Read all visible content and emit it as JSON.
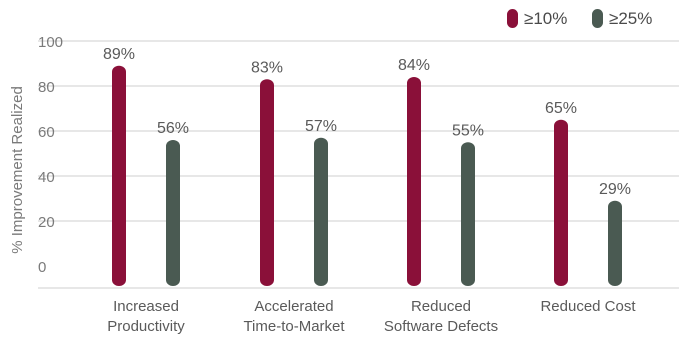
{
  "chart_data": {
    "type": "bar",
    "categories": [
      "Increased\nProductivity",
      "Accelerated\nTime-to-Market",
      "Reduced\nSoftware Defects",
      "Reduced Cost"
    ],
    "series": [
      {
        "name": "≥10%",
        "values": [
          89,
          83,
          84,
          65
        ],
        "labels": [
          "89%",
          "83%",
          "84%",
          "65%"
        ],
        "color": "#8a1039"
      },
      {
        "name": "≥25%",
        "values": [
          56,
          57,
          55,
          29
        ],
        "labels": [
          "56%",
          "57%",
          "55%",
          "29%"
        ],
        "color": "#4a5a52"
      }
    ],
    "ylabel": "% Improvement Realized",
    "xlabel": "",
    "ylim": [
      0,
      100
    ],
    "yticks": [
      0,
      20,
      40,
      60,
      80,
      100
    ],
    "grid": true,
    "legend": "top-right",
    "colors": {
      "grid": "#cfcfcf",
      "text": "#5a5a5a"
    }
  }
}
